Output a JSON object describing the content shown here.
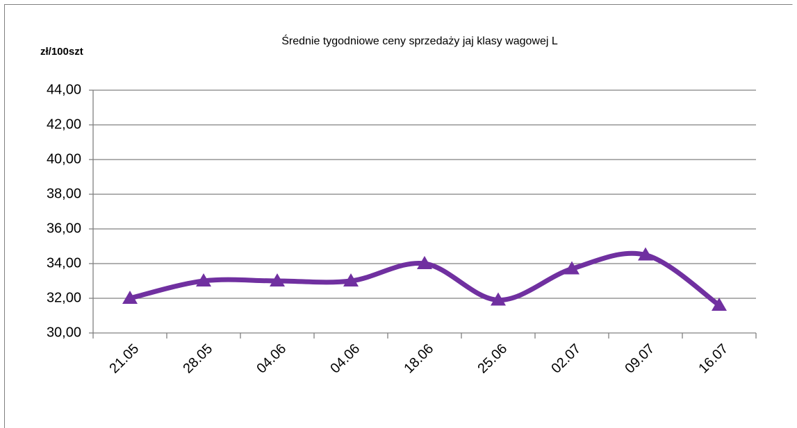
{
  "chart_data": {
    "type": "line",
    "title": "Średnie tygodniowe ceny sprzedaży jaj klasy wagowej L",
    "y_label": "zł/100szt",
    "categories": [
      "21.05",
      "28.05",
      "04.06",
      "04.06",
      "18.06",
      "25.06",
      "02.07",
      "09.07",
      "16.07"
    ],
    "series": [
      {
        "name": null,
        "color": "#7030a0",
        "values": [
          32.0,
          33.0,
          33.0,
          33.0,
          34.0,
          31.9,
          33.7,
          34.5,
          31.6
        ]
      }
    ],
    "ylim": [
      30,
      44
    ],
    "yticks": [
      {
        "value": 30,
        "label": "30,00"
      },
      {
        "value": 32,
        "label": "32,00"
      },
      {
        "value": 34,
        "label": "34,00"
      },
      {
        "value": 36,
        "label": "36,00"
      },
      {
        "value": 38,
        "label": "38,00"
      },
      {
        "value": 40,
        "label": "40,00"
      },
      {
        "value": 42,
        "label": "42,00"
      },
      {
        "value": 44,
        "label": "44,00"
      }
    ],
    "grid": true,
    "smooth": true,
    "marker": "triangle"
  }
}
